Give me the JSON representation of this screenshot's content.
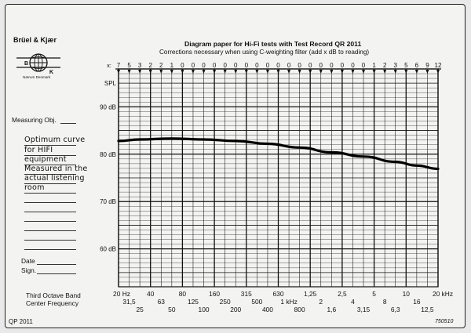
{
  "header": {
    "brand": "Brüel & Kjær",
    "logo_letters": [
      "B",
      "K"
    ],
    "logo_caption": "Nærum Denmark",
    "title": "Diagram paper for Hi-Fi tests with Test Record QR 2011",
    "subtitle": "Corrections necessary when using C-weighting filter (add x dB to reading)"
  },
  "sidebar": {
    "measuring_label": "Measuring Obj.",
    "handwritten_lines": [
      "Optimum curve",
      "for HIFI",
      "equipment",
      "Measured in the",
      "actual listening",
      "room"
    ],
    "date_label": "Date",
    "sign_label": "Sign.",
    "axis_caption_line1": "Third Octave Band",
    "axis_caption_line2": "Center Frequency"
  },
  "footer": {
    "left": "QP 2011",
    "right": "750510"
  },
  "chart_data": {
    "type": "line",
    "title": "Diagram paper for Hi-Fi tests with Test Record QR 2011",
    "corrections_prefix": "x:",
    "corrections": [
      "7",
      "5",
      "3",
      "2",
      "2",
      "1",
      "0",
      "0",
      "0",
      "0",
      "0",
      "0",
      "0",
      "0",
      "0",
      "0",
      "0",
      "0",
      "0",
      "0",
      "0",
      "0",
      "0",
      "0",
      "1",
      "2",
      "3",
      "5",
      "6",
      "9",
      "12"
    ],
    "frequency_row1": [
      "20 Hz",
      "40",
      "80",
      "160",
      "315",
      "630",
      "1,25",
      "2,5",
      "5",
      "10",
      "20 kHz"
    ],
    "frequency_row2": [
      "31,5",
      "63",
      "125",
      "250",
      "500",
      "1 kHz",
      "2",
      "4",
      "8",
      "16"
    ],
    "frequency_row3": [
      "25",
      "50",
      "100",
      "200",
      "400",
      "800",
      "1,6",
      "3,15",
      "6,3",
      "12,5"
    ],
    "y_labels": [
      "SPL",
      "90 dB",
      "80 dB",
      "70 dB",
      "60 dB"
    ],
    "y_label_values": [
      95,
      90,
      80,
      70,
      60
    ],
    "ylim": [
      52,
      98
    ],
    "x_bands": 31,
    "series": [
      {
        "name": "",
        "x_band": [
          0,
          2,
          5,
          8,
          11,
          14,
          17,
          20,
          23,
          26,
          28,
          30
        ],
        "y_db": [
          82.8,
          83.1,
          83.3,
          83.1,
          82.8,
          82.2,
          81.4,
          80.4,
          79.5,
          78.4,
          77.6,
          76.9
        ]
      }
    ]
  }
}
